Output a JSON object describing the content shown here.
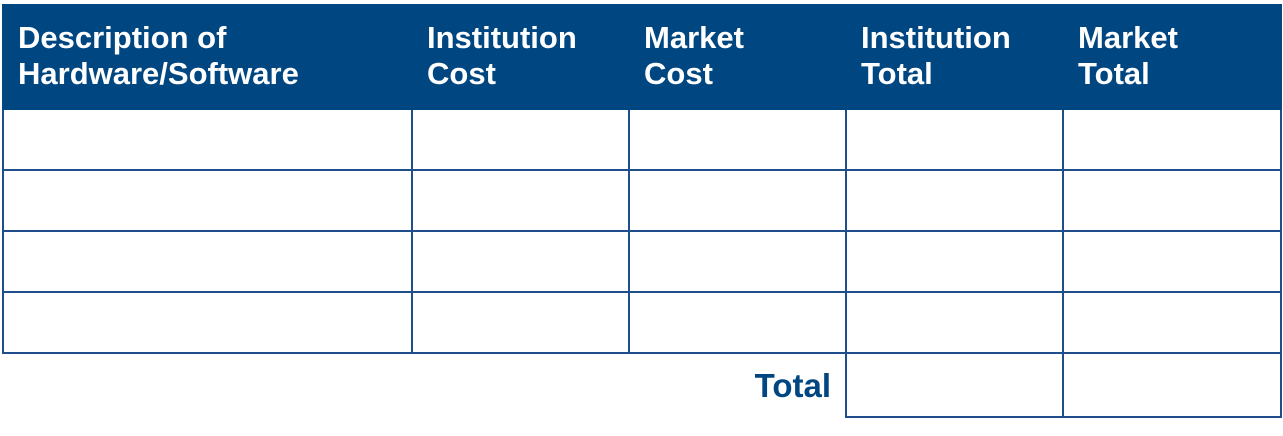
{
  "table": {
    "headers": [
      {
        "line1": "Description of",
        "line2": "Hardware/Software"
      },
      {
        "line1": "Institution",
        "line2": "Cost"
      },
      {
        "line1": "Market",
        "line2": "Cost"
      },
      {
        "line1": "Institution",
        "line2": "Total"
      },
      {
        "line1": "Market",
        "line2": "Total"
      }
    ],
    "rows": [
      [
        "",
        "",
        "",
        "",
        ""
      ],
      [
        "",
        "",
        "",
        "",
        ""
      ],
      [
        "",
        "",
        "",
        "",
        ""
      ],
      [
        "",
        "",
        "",
        "",
        ""
      ]
    ],
    "total_label": "Total",
    "totals": {
      "institution_total": "",
      "market_total": ""
    }
  },
  "colors": {
    "header_background": "#004680",
    "header_text": "#ffffff",
    "grid_line": "#1f4e8c",
    "total_label": "#004680"
  }
}
